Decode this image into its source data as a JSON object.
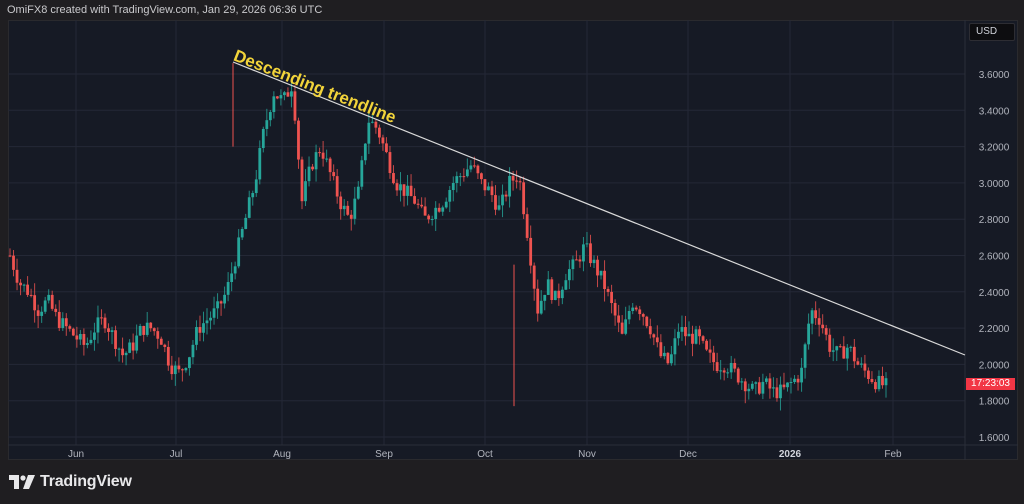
{
  "header": {
    "credit": "OmiFX8 created with TradingView.com, Jan 29, 2026 06:36 UTC"
  },
  "price_axis": {
    "currency": "USD",
    "labels": [
      "3.6000",
      "3.4000",
      "3.2000",
      "3.0000",
      "2.8000",
      "2.6000",
      "2.4000",
      "2.2000",
      "2.0000",
      "1.8000",
      "1.6000"
    ],
    "countdown_tag": "17:23:03"
  },
  "time_axis": {
    "labels": [
      "Jun",
      "Jul",
      "Aug",
      "Sep",
      "Oct",
      "Nov",
      "Dec",
      "2026",
      "Feb"
    ]
  },
  "annotation": {
    "text": "Descending trendline"
  },
  "footer": {
    "brand": "TradingView"
  },
  "colors": {
    "up": "#26a69a",
    "down": "#ef5350",
    "trendline": "#d9d9d9",
    "annotation": "#f2d43a",
    "tag": "#f23645",
    "background": "#161a25",
    "grid": "#242836",
    "axis_text": "#b2b5be"
  },
  "chart_data": {
    "type": "candlestick",
    "title": "",
    "xlabel": "",
    "ylabel": "USD",
    "ylim": [
      1.55,
      3.8
    ],
    "grid": true,
    "x_ticks": [
      "Jun",
      "Jul",
      "Aug",
      "Sep",
      "Oct",
      "Nov",
      "Dec",
      "2026",
      "Feb"
    ],
    "y_ticks": [
      1.6,
      1.8,
      2.0,
      2.2,
      2.4,
      2.6,
      2.8,
      3.0,
      3.2,
      3.4,
      3.6
    ],
    "trendline": {
      "label": "Descending trendline",
      "start": {
        "date": "Jul 18 2025",
        "price": 3.66
      },
      "end": {
        "date": "Feb 2026 (right edge)",
        "price": 2.05
      }
    },
    "last_price": 1.88,
    "closes_approx": [
      2.6,
      2.45,
      2.4,
      2.3,
      2.35,
      2.25,
      2.2,
      2.15,
      2.1,
      2.2,
      2.25,
      2.15,
      2.05,
      2.1,
      2.2,
      2.2,
      2.15,
      2.0,
      1.95,
      2.05,
      2.2,
      2.25,
      2.3,
      2.4,
      2.6,
      2.8,
      3.0,
      3.3,
      3.5,
      3.45,
      3.55,
      2.9,
      3.1,
      3.2,
      3.05,
      2.9,
      2.8,
      2.95,
      3.35,
      3.3,
      3.15,
      3.0,
      2.95,
      2.9,
      2.8,
      2.85,
      2.9,
      3.0,
      3.05,
      3.1,
      3.0,
      2.95,
      2.85,
      3.0,
      3.05,
      2.7,
      2.3,
      2.45,
      2.35,
      2.5,
      2.55,
      2.65,
      2.55,
      2.45,
      2.3,
      2.15,
      2.35,
      2.3,
      2.2,
      2.05,
      2.0,
      2.2,
      2.15,
      2.15,
      2.05,
      2.0,
      2.0,
      1.95,
      1.9,
      1.85,
      1.9,
      1.85,
      1.85,
      1.9,
      1.95,
      2.3,
      2.25,
      2.1,
      2.05,
      2.1,
      2.0,
      1.95,
      1.9,
      1.88
    ]
  }
}
